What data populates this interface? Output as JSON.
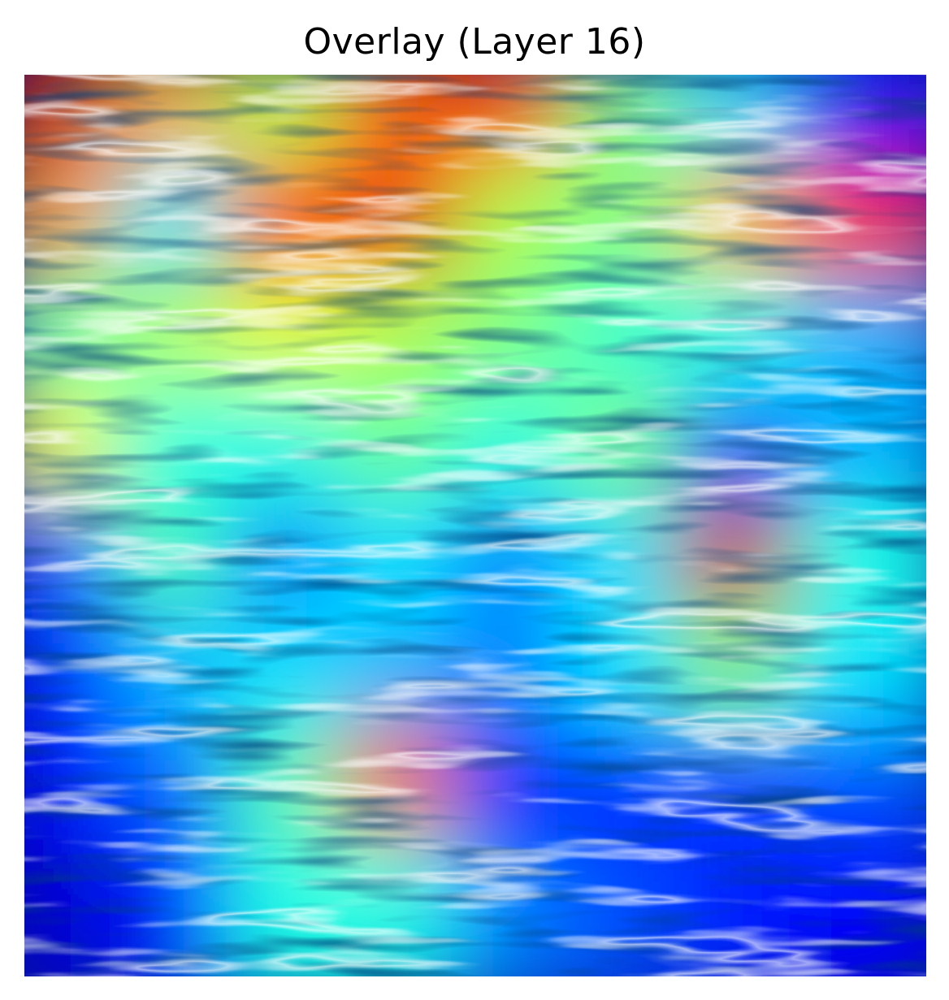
{
  "figure": {
    "title": "Overlay (Layer 16)",
    "colormap": "jet",
    "overlay_alpha": 0.5
  },
  "heatmap": {
    "rows": 8,
    "cols": 8,
    "values": [
      [
        0.92,
        0.7,
        0.55,
        0.78,
        0.82,
        0.5,
        0.35,
        0.15
      ],
      [
        0.72,
        0.35,
        0.85,
        0.9,
        0.55,
        0.5,
        0.7,
        0.88
      ],
      [
        0.45,
        0.55,
        0.6,
        0.55,
        0.5,
        0.42,
        0.4,
        0.3
      ],
      [
        0.62,
        0.4,
        0.4,
        0.48,
        0.4,
        0.5,
        0.2,
        0.3
      ],
      [
        0.2,
        0.45,
        0.25,
        0.35,
        0.25,
        0.35,
        0.92,
        0.4
      ],
      [
        0.15,
        0.3,
        0.35,
        0.3,
        0.25,
        0.35,
        0.5,
        0.35
      ],
      [
        0.12,
        0.22,
        0.45,
        0.78,
        0.15,
        0.15,
        0.18,
        0.2
      ],
      [
        0.08,
        0.15,
        0.4,
        0.4,
        0.25,
        0.2,
        0.15,
        0.12
      ]
    ]
  }
}
